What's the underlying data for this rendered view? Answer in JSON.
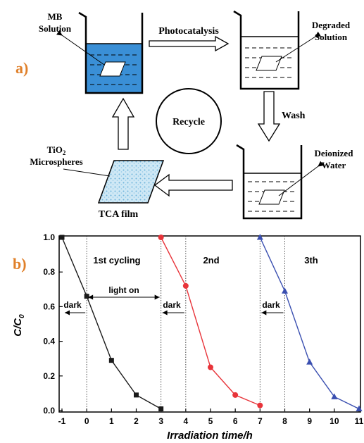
{
  "panel_a": {
    "label": "a)",
    "beaker1_label_line1": "MB",
    "beaker1_label_line2": "Solution",
    "arrow_top_label": "Photocatalysis",
    "beaker2_label_line1": "Degraded",
    "beaker2_label_line2": "Solution",
    "center_label": "Recycle",
    "arrow_right_label": "Wash",
    "beaker3_label_line1": "Deionized",
    "beaker3_label_line2": "Water",
    "film_label_line1": "TiO",
    "film_label_sub": "2",
    "film_label_line2": "Microspheres",
    "film_bottom_label": "TCA film",
    "colors": {
      "mb_solution": "#3a8fd6",
      "film_fill": "#b9dcef"
    }
  },
  "panel_b": {
    "label": "b)",
    "ylabel_main": "C/C",
    "ylabel_sub": "0",
    "xlabel": "Irradiation time/h",
    "annotation_cycle1": "1st cycling",
    "annotation_cycle2": "2nd",
    "annotation_cycle3": "3th",
    "annotation_light": "light on",
    "annotation_dark1": "dark",
    "annotation_dark2": "dark",
    "annotation_dark3": "dark"
  },
  "chart_data": {
    "type": "line",
    "xlabel": "Irradiation time/h",
    "ylabel": "C/C0",
    "xlim": [
      -1,
      11
    ],
    "ylim": [
      0.0,
      1.0
    ],
    "x_ticks": [
      "-1",
      "0",
      "1",
      "2",
      "3",
      "4",
      "5",
      "6",
      "7",
      "8",
      "9",
      "10",
      "11"
    ],
    "y_ticks": [
      "0.0",
      "0.2",
      "0.4",
      "0.6",
      "0.8",
      "1.0"
    ],
    "series": [
      {
        "color": "#1a1a1a",
        "marker": "square",
        "x": [
          -1,
          0,
          1,
          2,
          3
        ],
        "y": [
          1.0,
          0.66,
          0.29,
          0.09,
          0.01
        ]
      },
      {
        "color": "#e8343a",
        "marker": "circle",
        "x": [
          3,
          4,
          5,
          6,
          7
        ],
        "y": [
          1.0,
          0.72,
          0.25,
          0.09,
          0.03
        ]
      },
      {
        "color": "#3a4fb0",
        "marker": "triangle",
        "x": [
          7,
          8,
          9,
          10,
          11
        ],
        "y": [
          1.0,
          0.69,
          0.28,
          0.08,
          0.01
        ]
      }
    ],
    "grid": false,
    "legend": "none"
  }
}
